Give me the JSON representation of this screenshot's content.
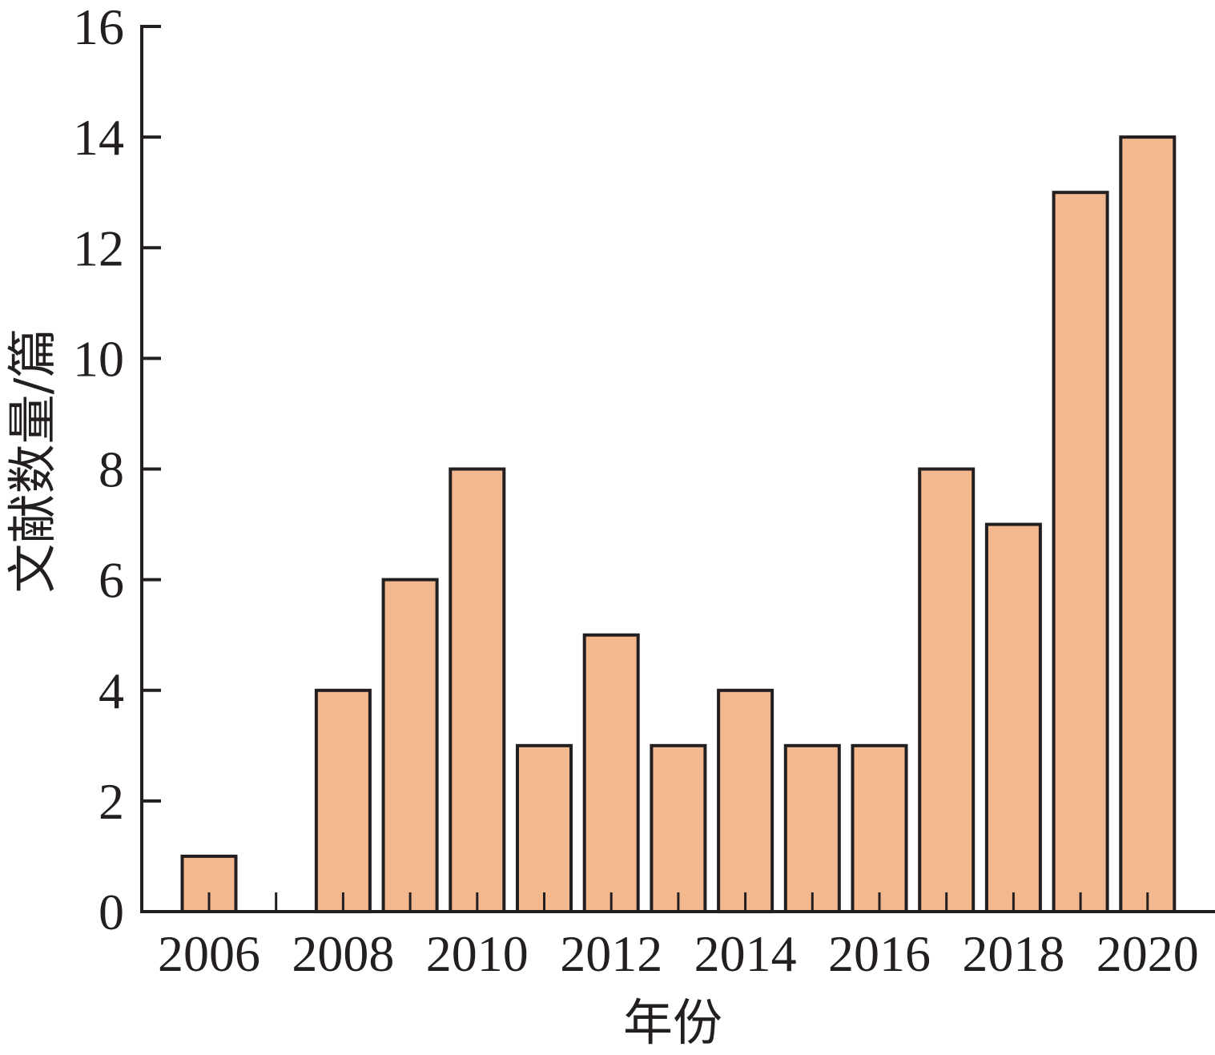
{
  "chart_data": {
    "type": "bar",
    "title": "",
    "xlabel": "年份",
    "ylabel": "文献数量/篇",
    "categories": [
      "2006",
      "2007",
      "2008",
      "2009",
      "2010",
      "2011",
      "2012",
      "2013",
      "2014",
      "2015",
      "2016",
      "2017",
      "2018",
      "2019",
      "2020"
    ],
    "values": [
      1,
      0,
      4,
      6,
      8,
      3,
      5,
      3,
      4,
      3,
      3,
      8,
      7,
      13,
      14
    ],
    "x_tick_labels": [
      "2006",
      "2008",
      "2010",
      "2012",
      "2014",
      "2016",
      "2018",
      "2020"
    ],
    "y_ticks": [
      0,
      2,
      4,
      6,
      8,
      10,
      12,
      14,
      16
    ],
    "ylim": [
      0,
      16
    ],
    "grid": false,
    "legend": "none",
    "colors": {
      "bar_fill": "#f4b88f",
      "bar_stroke": "#231f20",
      "axis": "#231f20",
      "text": "#231f20"
    }
  }
}
